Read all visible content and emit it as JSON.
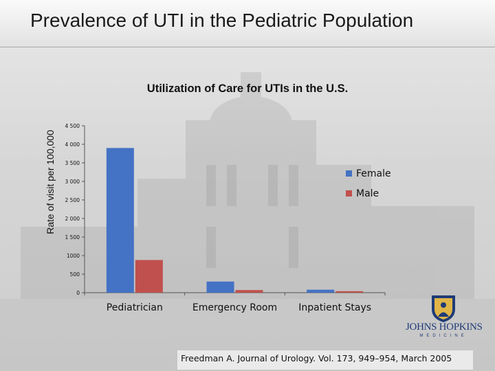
{
  "slide": {
    "title": "Prevalence of UTI in the Pediatric Population",
    "citation": "Freedman A. Journal of Urology. Vol. 173, 949–954, March 2005",
    "logo": {
      "text": "JOHNS HOPKINS",
      "subtext": "MEDICINE"
    }
  },
  "colors": {
    "female": "#4472C4",
    "male": "#C0504D"
  },
  "chart_data": {
    "type": "bar",
    "title": "Utilization of Care for UTIs in the U.S.",
    "ylabel": "Rate of visit per 100,000",
    "xlabel": "",
    "categories": [
      "Pediatrician",
      "Emergency Room",
      "Inpatient Stays"
    ],
    "series": [
      {
        "name": "Female",
        "values": [
          3900,
          300,
          80
        ]
      },
      {
        "name": "Male",
        "values": [
          880,
          70,
          40
        ]
      }
    ],
    "yticks": [
      0,
      500,
      1000,
      1500,
      2000,
      2500,
      3000,
      3500,
      4000,
      4500
    ],
    "ytick_labels": [
      "0",
      "500",
      "1000",
      "1 500",
      "2 000",
      "2 500",
      "3 000",
      "3 500",
      "4 000",
      "4 500"
    ],
    "ylim": [
      0,
      4500
    ],
    "legend": "right",
    "grid": false
  }
}
